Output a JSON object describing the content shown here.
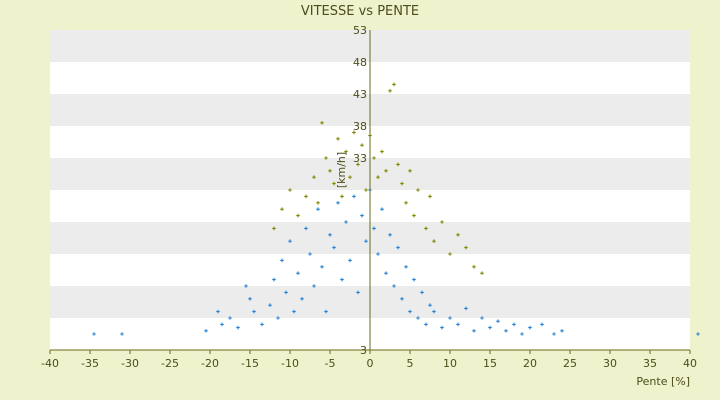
{
  "colors": {
    "page_background": "#eef2cd",
    "plot_band_light": "#ffffff",
    "plot_band_dark": "#ececec",
    "axis": "#6b6b1a",
    "text": "#4d4d1a",
    "series_blue": "#2e86d6",
    "series_olive": "#8a8a0a"
  },
  "chart_data": {
    "type": "scatter",
    "title": "VITESSE vs PENTE",
    "xlabel": "Pente [%]",
    "ylabel": "[km/h]",
    "xlim": [
      -40,
      40
    ],
    "ylim": [
      3,
      53
    ],
    "x_ticks": [
      -40,
      -35,
      -30,
      -25,
      -20,
      -15,
      -10,
      -5,
      0,
      5,
      10,
      15,
      20,
      25,
      30,
      35,
      40
    ],
    "y_ticks": [
      3,
      8,
      13,
      18,
      23,
      28,
      33,
      38,
      43,
      48,
      53
    ],
    "y_tick_labels_shown": [
      3,
      33,
      38,
      43,
      48,
      53
    ],
    "grid": "horizontal alternating bands",
    "legend": "none",
    "series": [
      {
        "color": "#2e86d6",
        "marker": "+",
        "points": [
          [
            -34.5,
            5.5
          ],
          [
            -31,
            5.5
          ],
          [
            -20.5,
            6
          ],
          [
            -19,
            9
          ],
          [
            -18.5,
            7
          ],
          [
            -17.5,
            8
          ],
          [
            -16.5,
            6.5
          ],
          [
            -15.5,
            13
          ],
          [
            -15,
            11
          ],
          [
            -14.5,
            9
          ],
          [
            -13.5,
            7
          ],
          [
            -12.5,
            10
          ],
          [
            -12,
            14
          ],
          [
            -11.5,
            8
          ],
          [
            -11,
            17
          ],
          [
            -10.5,
            12
          ],
          [
            -10,
            20
          ],
          [
            -9.5,
            9
          ],
          [
            -9,
            15
          ],
          [
            -8.5,
            11
          ],
          [
            -8,
            22
          ],
          [
            -7.5,
            18
          ],
          [
            -7,
            13
          ],
          [
            -6.5,
            25
          ],
          [
            -6,
            16
          ],
          [
            -5.5,
            9
          ],
          [
            -5,
            21
          ],
          [
            -4.5,
            19
          ],
          [
            -4,
            26
          ],
          [
            -3.5,
            14
          ],
          [
            -3,
            23
          ],
          [
            -2.5,
            17
          ],
          [
            -2,
            27
          ],
          [
            -1.5,
            12
          ],
          [
            -1,
            24
          ],
          [
            -0.5,
            20
          ],
          [
            0,
            28
          ],
          [
            0.5,
            22
          ],
          [
            1,
            18
          ],
          [
            1.5,
            25
          ],
          [
            2,
            15
          ],
          [
            2.5,
            21
          ],
          [
            3,
            13
          ],
          [
            3.5,
            19
          ],
          [
            4,
            11
          ],
          [
            4.5,
            16
          ],
          [
            5,
            9
          ],
          [
            5.5,
            14
          ],
          [
            6,
            8
          ],
          [
            6.5,
            12
          ],
          [
            7,
            7
          ],
          [
            7.5,
            10
          ],
          [
            8,
            9
          ],
          [
            9,
            6.5
          ],
          [
            10,
            8
          ],
          [
            11,
            7
          ],
          [
            12,
            9.5
          ],
          [
            13,
            6
          ],
          [
            14,
            8
          ],
          [
            15,
            6.5
          ],
          [
            16,
            7.5
          ],
          [
            17,
            6
          ],
          [
            18,
            7
          ],
          [
            19,
            5.5
          ],
          [
            20,
            6.5
          ],
          [
            21.5,
            7
          ],
          [
            23,
            5.5
          ],
          [
            24,
            6
          ],
          [
            41,
            5.5
          ]
        ]
      },
      {
        "color": "#8a8a0a",
        "marker": "+",
        "points": [
          [
            -12,
            22
          ],
          [
            -11,
            25
          ],
          [
            -10,
            28
          ],
          [
            -9,
            24
          ],
          [
            -8,
            27
          ],
          [
            -7,
            30
          ],
          [
            -6.5,
            26
          ],
          [
            -6,
            38.5
          ],
          [
            -5.5,
            33
          ],
          [
            -5,
            31
          ],
          [
            -4.5,
            29
          ],
          [
            -4,
            36
          ],
          [
            -3.5,
            27
          ],
          [
            -3,
            34
          ],
          [
            -2.5,
            30
          ],
          [
            -2,
            37
          ],
          [
            -1.5,
            32
          ],
          [
            -1,
            35
          ],
          [
            -0.5,
            28
          ],
          [
            0,
            36.5
          ],
          [
            0.5,
            33
          ],
          [
            1,
            30
          ],
          [
            1.5,
            34
          ],
          [
            2,
            31
          ],
          [
            2.5,
            43.5
          ],
          [
            3,
            44.5
          ],
          [
            3.5,
            32
          ],
          [
            4,
            29
          ],
          [
            4.5,
            26
          ],
          [
            5,
            31
          ],
          [
            5.5,
            24
          ],
          [
            6,
            28
          ],
          [
            7,
            22
          ],
          [
            7.5,
            27
          ],
          [
            8,
            20
          ],
          [
            9,
            23
          ],
          [
            10,
            18
          ],
          [
            11,
            21
          ],
          [
            12,
            19
          ],
          [
            13,
            16
          ],
          [
            14,
            15
          ]
        ]
      }
    ]
  }
}
